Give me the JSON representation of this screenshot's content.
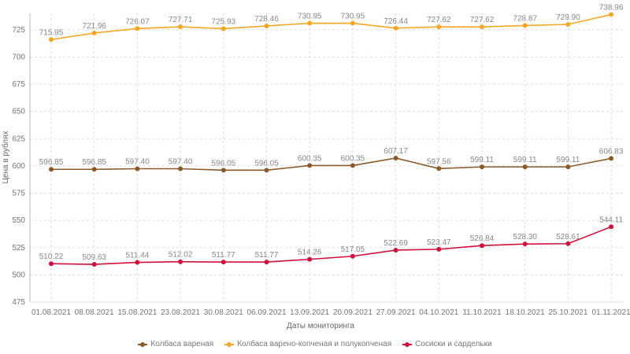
{
  "chart_data": {
    "type": "line",
    "xlabel": "Даты мониторинга",
    "ylabel": "Цена в рублях",
    "ylim": [
      475,
      740
    ],
    "yticks": [
      475,
      500,
      525,
      550,
      575,
      600,
      625,
      650,
      675,
      700,
      725
    ],
    "grid": true,
    "legend_position": "bottom",
    "categories": [
      "01.08.2021",
      "08.08.2021",
      "15.08.2021",
      "23.08.2021",
      "30.08.2021",
      "06.09.2021",
      "13.09.2021",
      "20.09.2021",
      "27.09.2021",
      "04.10.2021",
      "11.10.2021",
      "18.10.2021",
      "25.10.2021",
      "01.11.2021"
    ],
    "series": [
      {
        "name": "Колбаса вареная",
        "color": "#8b5a2b",
        "values": [
          596.85,
          596.85,
          597.4,
          597.4,
          596.05,
          596.05,
          600.35,
          600.35,
          607.17,
          597.56,
          599.11,
          599.11,
          599.11,
          606.83
        ]
      },
      {
        "name": "Колбаса варено-копченая и полукопченая",
        "color": "#f5a623",
        "values": [
          715.95,
          721.96,
          726.07,
          727.71,
          725.93,
          728.46,
          730.95,
          730.95,
          726.44,
          727.62,
          727.62,
          728.87,
          729.9,
          738.96
        ]
      },
      {
        "name": "Сосиски и сардельки",
        "color": "#d0103a",
        "values": [
          510.22,
          509.63,
          511.44,
          512.02,
          511.77,
          511.77,
          514.26,
          517.05,
          522.69,
          523.47,
          526.84,
          528.3,
          528.61,
          544.11
        ]
      }
    ]
  }
}
